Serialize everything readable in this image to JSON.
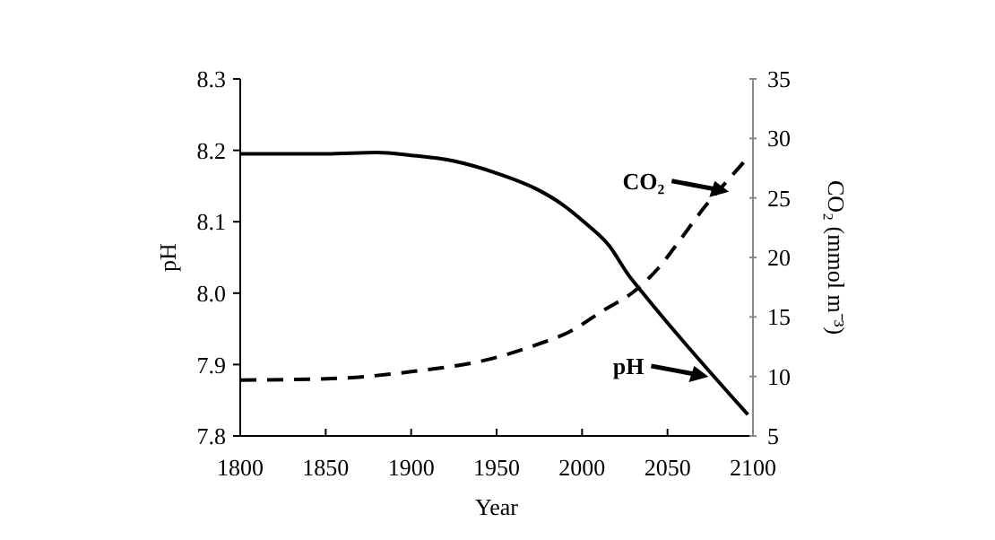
{
  "chart_data": {
    "type": "line",
    "xlabel": "Year",
    "ylabel": "pH",
    "y2label": "CO₂ (mmol m⁻³)",
    "xlim": [
      1800,
      2100
    ],
    "xticks": [
      1800,
      1850,
      1900,
      1950,
      2000,
      2050,
      2100
    ],
    "ylim": [
      7.8,
      8.3
    ],
    "yticks": [
      {
        "value": 7.8,
        "label": "7.8"
      },
      {
        "value": 7.9,
        "label": "7.9"
      },
      {
        "value": 8.0,
        "label": "8.0"
      },
      {
        "value": 8.1,
        "label": "8.1"
      },
      {
        "value": 8.2,
        "label": "8.2"
      },
      {
        "value": 8.3,
        "label": "8.3"
      }
    ],
    "y2lim": [
      5,
      35
    ],
    "y2ticks": [
      5,
      10,
      15,
      20,
      25,
      30,
      35
    ],
    "marker": "none",
    "grid": false,
    "series": [
      {
        "color": "#000000",
        "line_style": "solid",
        "x": [
          1800,
          1850,
          1880,
          1900,
          1925,
          1950,
          1974,
          1988,
          2002,
          2016,
          2027,
          2037,
          2097
        ],
        "values": [
          8.195,
          8.195,
          8.197,
          8.193,
          8.185,
          8.168,
          8.145,
          8.125,
          8.098,
          8.066,
          8.026,
          7.996,
          7.83
        ]
      },
      {
        "color": "#000000",
        "line_style": "dashed",
        "axis": "y2",
        "x": [
          1800,
          1850,
          1900,
          1950,
          1974,
          1992,
          2013,
          2030,
          2044,
          2058,
          2072,
          2086,
          2097
        ],
        "values": [
          9.7,
          9.8,
          10.4,
          11.6,
          12.7,
          13.7,
          15.6,
          17.1,
          19.0,
          21.6,
          24.3,
          26.6,
          28.4
        ]
      }
    ],
    "annotations": [
      {
        "text": "CO₂",
        "x": 2086,
        "y": 8.142
      },
      {
        "text": "pH",
        "x": 2074,
        "y": 7.883
      }
    ]
  }
}
